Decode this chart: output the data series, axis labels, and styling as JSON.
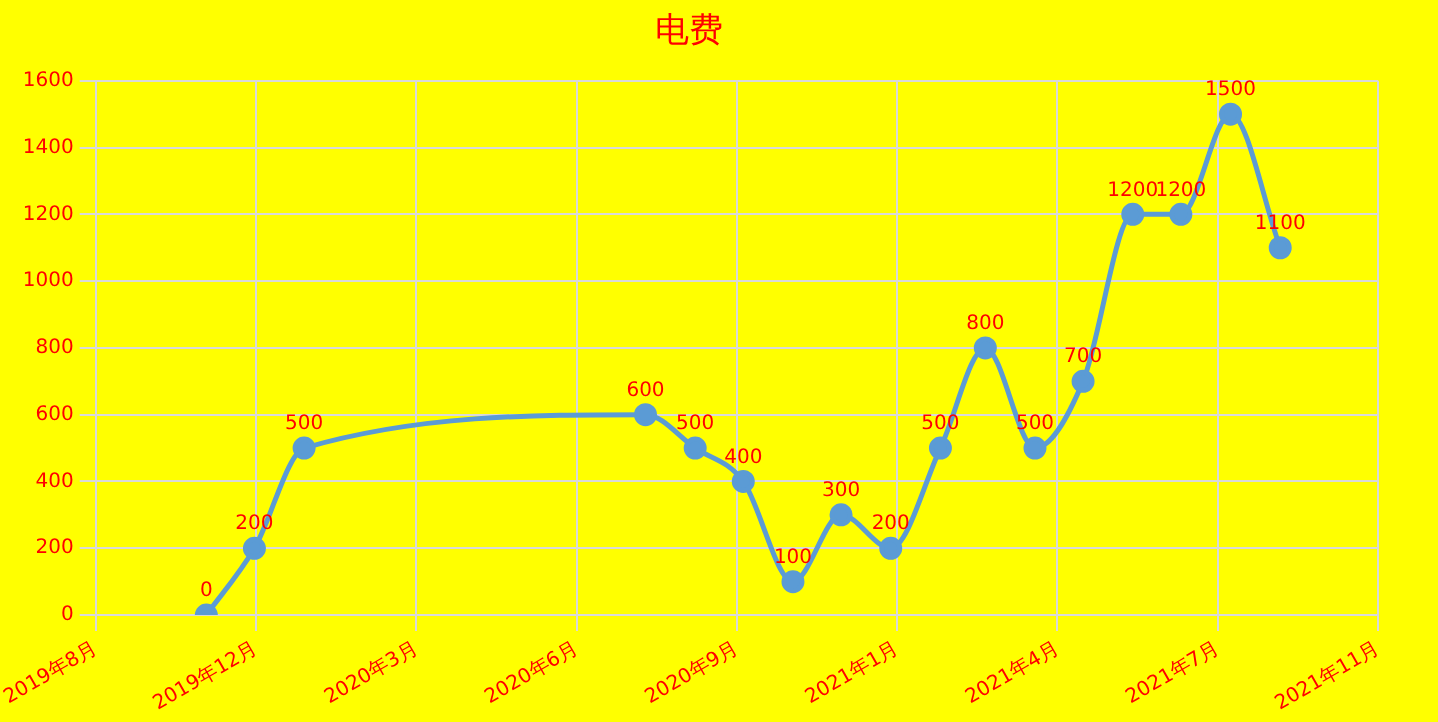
{
  "chart_data": {
    "type": "line",
    "title": "电费",
    "x": [
      "2019-11-01",
      "2019-12-01",
      "2020-01-01",
      "2020-08-01",
      "2020-09-01",
      "2020-10-01",
      "2020-11-01",
      "2020-12-01",
      "2021-01-01",
      "2021-02-01",
      "2021-03-01",
      "2021-04-01",
      "2021-05-01",
      "2021-06-01",
      "2021-07-01",
      "2021-08-01",
      "2021-09-01"
    ],
    "series": [
      {
        "color": "#5b9bd5",
        "values": [
          0,
          200,
          500,
          600,
          500,
          400,
          100,
          300,
          200,
          500,
          800,
          500,
          700,
          1200,
          1200,
          1500,
          1100
        ]
      }
    ],
    "xlim": [
      "2019-08-24",
      "2021-11-01"
    ],
    "xticks": [
      {
        "value": "2019-08-24",
        "label": "2019年8月"
      },
      {
        "value": "2019-12-02",
        "label": "2019年12月"
      },
      {
        "value": "2020-03-11",
        "label": "2020年3月"
      },
      {
        "value": "2020-06-19",
        "label": "2020年6月"
      },
      {
        "value": "2020-09-27",
        "label": "2020年9月"
      },
      {
        "value": "2021-01-05",
        "label": "2021年1月"
      },
      {
        "value": "2021-04-15",
        "label": "2021年4月"
      },
      {
        "value": "2021-07-24",
        "label": "2021年7月"
      },
      {
        "value": "2021-11-01",
        "label": "2021年11月"
      }
    ],
    "ylim": [
      0,
      1600
    ],
    "yticks": [
      0,
      200,
      400,
      600,
      800,
      1000,
      1200,
      1400,
      1600
    ],
    "grid": true,
    "legend": false,
    "marker": "circle",
    "line_style": "solid",
    "data_labels": true
  }
}
